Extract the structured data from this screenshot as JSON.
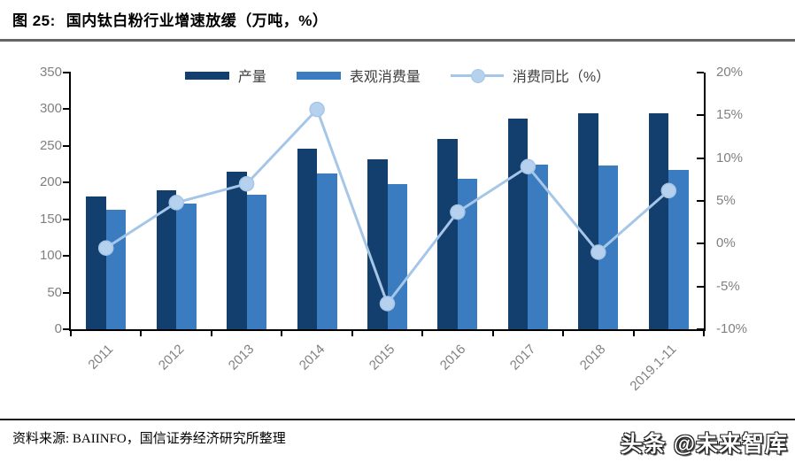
{
  "figure": {
    "label": "图 25:",
    "title": "国内钛白粉行业增速放缓（万吨，%）"
  },
  "chart_data": {
    "type": "bar+line",
    "title": "国内钛白粉行业增速放缓（万吨，%）",
    "categories": [
      "2011",
      "2012",
      "2013",
      "2014",
      "2015",
      "2016",
      "2017",
      "2018",
      "2019.1-11"
    ],
    "series": [
      {
        "name": "产量",
        "type": "bar",
        "axis": "left",
        "color": "#123f6d",
        "values": [
          181,
          189,
          215,
          246,
          232,
          259,
          287,
          295,
          294
        ]
      },
      {
        "name": "表观消费量",
        "type": "bar",
        "axis": "left",
        "color": "#3b7cc1",
        "values": [
          163,
          171,
          184,
          212,
          198,
          205,
          225,
          223,
          217
        ]
      },
      {
        "name": "消费同比（%）",
        "type": "line",
        "axis": "right",
        "color": "#a6c6e8",
        "marker_color": "#b5d1ee",
        "values": [
          -0.5,
          4.8,
          7.0,
          15.7,
          -7.0,
          3.7,
          9.0,
          -1.0,
          6.2
        ]
      }
    ],
    "left_axis": {
      "min": 0,
      "max": 350,
      "step": 50,
      "ticks": [
        {
          "v": 350,
          "label": "350"
        },
        {
          "v": 300,
          "label": "300"
        },
        {
          "v": 250,
          "label": "250"
        },
        {
          "v": 200,
          "label": "200"
        },
        {
          "v": 150,
          "label": "150"
        },
        {
          "v": 100,
          "label": "100"
        },
        {
          "v": 50,
          "label": "50"
        },
        {
          "v": 0,
          "label": "0"
        }
      ]
    },
    "right_axis": {
      "min": -10,
      "max": 20,
      "step": 5,
      "ticks": [
        {
          "v": 20,
          "label": "20%"
        },
        {
          "v": 15,
          "label": "15%"
        },
        {
          "v": 10,
          "label": "10%"
        },
        {
          "v": 5,
          "label": "5%"
        },
        {
          "v": 0,
          "label": "0%"
        },
        {
          "v": -5,
          "label": "-5%"
        },
        {
          "v": -10,
          "label": "-10%"
        }
      ]
    },
    "grid": false,
    "legend_position": "top"
  },
  "source": {
    "text": "资料来源: BAIINFO，国信证券经济研究所整理"
  },
  "watermark": {
    "text": "头条 @未来智库"
  }
}
